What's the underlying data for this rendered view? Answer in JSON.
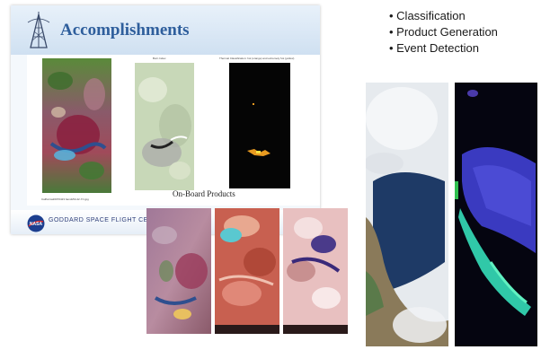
{
  "slide": {
    "title": "Accomplishments",
    "panel_captions": {
      "middle": "Burn Index",
      "right": "Thermal Classification: hot (orange) and extremely hot (yellow)"
    },
    "image_filename": "California20070423 bands50-42-7/1.jpg",
    "products_label": "On-Board Products",
    "footer_org": "GODDARD SPACE FLIGHT CENTER",
    "logo_text": "NASA"
  },
  "bullets": [
    "Classification",
    "Product Generation",
    "Event Detection"
  ],
  "icons": [
    "nasa-logo-icon",
    "antenna-tower-icon"
  ],
  "colors": {
    "title": "#2e5e9c",
    "header_bg": "#cfe0f1",
    "footer_text": "#2f3f7a"
  }
}
